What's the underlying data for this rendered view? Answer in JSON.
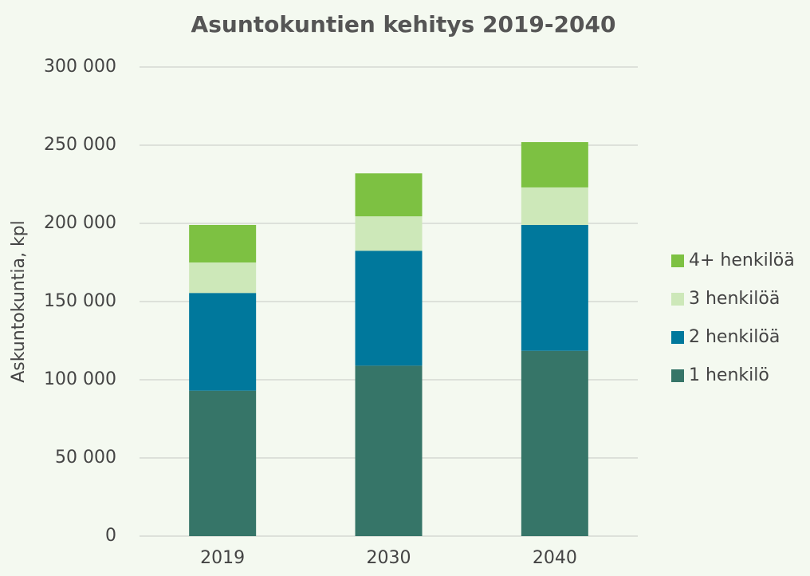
{
  "chart_data": {
    "type": "stacked_bar",
    "title": "Asuntokuntien kehitys 2019-2040",
    "ylabel": "Askuntokuntia, kpl",
    "categories": [
      "2019",
      "2030",
      "2040"
    ],
    "series": [
      {
        "name": "1 henkilö",
        "color": "#367568",
        "values": [
          93000,
          109000,
          118500
        ]
      },
      {
        "name": "2 henkilöä",
        "color": "#00789c",
        "values": [
          62500,
          73500,
          80500
        ]
      },
      {
        "name": "3 henkilöä",
        "color": "#cde8b9",
        "values": [
          19500,
          22000,
          24000
        ]
      },
      {
        "name": "4+ henkilöä",
        "color": "#7dc142",
        "values": [
          24000,
          27500,
          29000
        ]
      }
    ],
    "ylim": [
      0,
      300000
    ],
    "yticks": [
      0,
      {
        "value": 50000,
        "label": "50 000"
      },
      {
        "value": 100000,
        "label": "100 000"
      },
      {
        "value": 150000,
        "label": "150 000"
      },
      {
        "value": 200000,
        "label": "200 000"
      },
      {
        "value": 250000,
        "label": "250 000"
      },
      {
        "value": 300000,
        "label": "300 000"
      }
    ],
    "grid": true,
    "legend": "right"
  }
}
